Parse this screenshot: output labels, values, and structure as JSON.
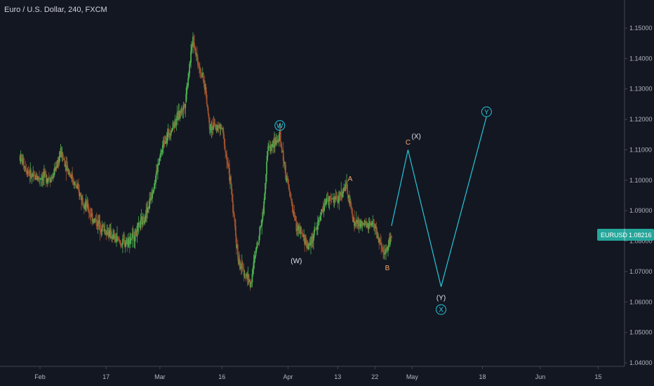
{
  "header": {
    "title": "Euro / U.S. Dollar, 240, FXCM"
  },
  "price_badge": {
    "symbol": "EURUSD",
    "value": "1.08216",
    "color": "#26a69a"
  },
  "colors": {
    "background": "#131722",
    "up_candle": "#4caf50",
    "down_candle": "#a0522d",
    "projection_line": "#26c6da",
    "label_white": "#e0e3eb",
    "label_orange": "#f5a86a",
    "label_cyan": "#26c6da",
    "axis_line": "#434651",
    "axis_text": "#b2b5be"
  },
  "chart_data": {
    "type": "candlestick",
    "title": "Euro / U.S. Dollar, 240, FXCM",
    "y_axis": {
      "ylim": [
        1.04,
        1.153
      ],
      "ticks": [
        "1.15000",
        "1.14000",
        "1.13000",
        "1.12000",
        "1.11000",
        "1.10000",
        "1.09000",
        "1.08000",
        "1.07000",
        "1.06000",
        "1.05000",
        "1.04000"
      ],
      "tick_values": [
        1.15,
        1.14,
        1.13,
        1.12,
        1.11,
        1.1,
        1.09,
        1.08,
        1.07,
        1.06,
        1.05,
        1.04
      ]
    },
    "x_axis": {
      "ticks": [
        "Feb",
        "17",
        "Mar",
        "16",
        "Apr",
        "13",
        "22",
        "May",
        "18",
        "Jun",
        "15"
      ],
      "tick_dates": [
        "2020-02-01",
        "2020-02-17",
        "2020-03-01",
        "2020-03-16",
        "2020-04-01",
        "2020-04-13",
        "2020-04-22",
        "2020-05-01",
        "2020-05-18",
        "2020-06-01",
        "2020-06-15"
      ]
    },
    "grid": false,
    "price_path": [
      [
        "2020-01-27",
        1.108
      ],
      [
        "2020-01-30",
        1.101
      ],
      [
        "2020-02-04",
        1.101
      ],
      [
        "2020-02-06",
        1.109
      ],
      [
        "2020-02-10",
        1.097
      ],
      [
        "2020-02-14",
        1.087
      ],
      [
        "2020-02-19",
        1.081
      ],
      [
        "2020-02-21",
        1.079
      ],
      [
        "2020-02-24",
        1.082
      ],
      [
        "2020-02-27",
        1.09
      ],
      [
        "2020-03-02",
        1.113
      ],
      [
        "2020-03-05",
        1.12
      ],
      [
        "2020-03-07",
        1.125
      ],
      [
        "2020-03-09",
        1.147
      ],
      [
        "2020-03-10",
        1.14
      ],
      [
        "2020-03-12",
        1.13
      ],
      [
        "2020-03-13",
        1.118
      ],
      [
        "2020-03-16",
        1.117
      ],
      [
        "2020-03-18",
        1.1
      ],
      [
        "2020-03-20",
        1.073
      ],
      [
        "2020-03-23",
        1.066
      ],
      [
        "2020-03-24",
        1.075
      ],
      [
        "2020-03-26",
        1.09
      ],
      [
        "2020-03-27",
        1.11
      ],
      [
        "2020-03-30",
        1.114
      ],
      [
        "2020-04-01",
        1.098
      ],
      [
        "2020-04-03",
        1.085
      ],
      [
        "2020-04-06",
        1.078
      ],
      [
        "2020-04-08",
        1.085
      ],
      [
        "2020-04-10",
        1.093
      ],
      [
        "2020-04-13",
        1.094
      ],
      [
        "2020-04-15",
        1.098
      ],
      [
        "2020-04-17",
        1.086
      ],
      [
        "2020-04-20",
        1.085
      ],
      [
        "2020-04-22",
        1.085
      ],
      [
        "2020-04-23",
        1.08
      ],
      [
        "2020-04-24",
        1.075
      ],
      [
        "2020-04-26",
        1.082
      ]
    ],
    "projection": {
      "points": [
        [
          "2020-04-26",
          1.085
        ],
        [
          "2020-04-30",
          1.11
        ],
        [
          "2020-05-08",
          1.065
        ],
        [
          "2020-05-19",
          1.121
        ]
      ]
    },
    "annotations": [
      {
        "text": "W",
        "date": "2020-03-30",
        "price": 1.118,
        "style": "circled",
        "color": "cyan"
      },
      {
        "text": "(W)",
        "date": "2020-04-03",
        "price": 1.0735,
        "style": "plain",
        "color": "white"
      },
      {
        "text": "A",
        "date": "2020-04-16",
        "price": 1.1005,
        "style": "plain",
        "color": "orange"
      },
      {
        "text": "B",
        "date": "2020-04-25",
        "price": 1.0712,
        "style": "plain",
        "color": "orange"
      },
      {
        "text": "C",
        "date": "2020-04-30",
        "price": 1.1125,
        "style": "plain",
        "color": "orange"
      },
      {
        "text": "(X)",
        "date": "2020-05-02",
        "price": 1.1145,
        "style": "plain",
        "color": "white"
      },
      {
        "text": "(Y)",
        "date": "2020-05-08",
        "price": 1.0615,
        "style": "plain",
        "color": "white"
      },
      {
        "text": "X",
        "date": "2020-05-08",
        "price": 1.0575,
        "style": "circled",
        "color": "cyan"
      },
      {
        "text": "Y",
        "date": "2020-05-19",
        "price": 1.1225,
        "style": "circled",
        "color": "cyan"
      }
    ]
  }
}
